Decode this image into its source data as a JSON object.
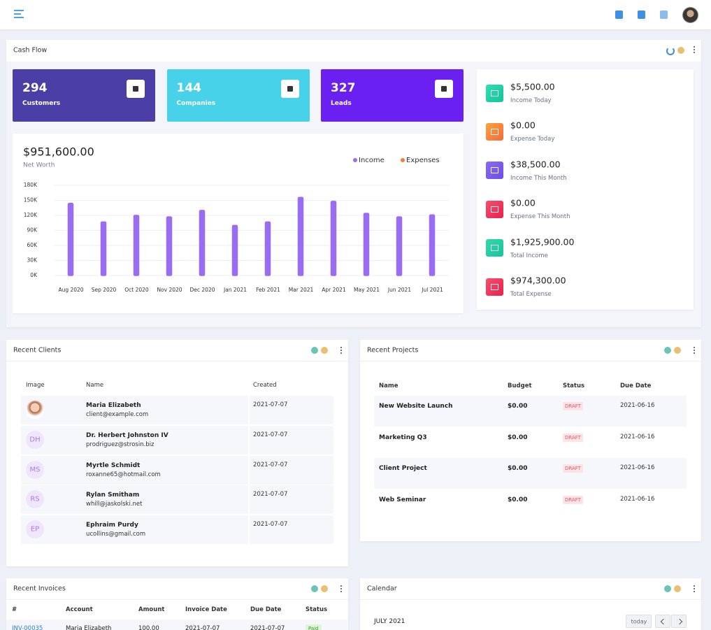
{
  "cash_flow": {
    "title": "Cash Flow",
    "tiles": [
      {
        "value": 294,
        "label": "Customers"
      },
      {
        "value": 144,
        "label": "Companies"
      },
      {
        "value": 327,
        "label": "Leads"
      }
    ],
    "chart": {
      "type": "bar",
      "title": "$951,600.00",
      "subtitle": "Net Worth",
      "categories": [
        "Aug 2020",
        "Sep 2020",
        "Oct 2020",
        "Nov 2020",
        "Dec 2020",
        "Jan 2021",
        "Feb 2021",
        "Mar 2021",
        "Apr 2021",
        "May 2021",
        "Jun 2021",
        "Jul 2021"
      ],
      "series": [
        {
          "name": "Income",
          "color": "#9a6cf2",
          "values": [
            144000,
            107000,
            120000,
            117000,
            130000,
            100000,
            107000,
            156000,
            148000,
            124000,
            117000,
            121000
          ]
        },
        {
          "name": "Expenses",
          "color": "#f57c3b",
          "values": [
            0,
            0,
            0,
            0,
            0,
            0,
            0,
            0,
            0,
            0,
            0,
            0
          ]
        }
      ],
      "ylim": [
        0,
        180000
      ],
      "yticks": [
        {
          "value": 0,
          "label": "0K"
        },
        {
          "value": 30000,
          "label": "30K"
        },
        {
          "value": 60000,
          "label": "60K"
        },
        {
          "value": 90000,
          "label": "90K"
        },
        {
          "value": 120000,
          "label": "120K"
        },
        {
          "value": 150000,
          "label": "150K"
        },
        {
          "value": 180000,
          "label": "180K"
        }
      ],
      "grid": true
    },
    "summary": [
      {
        "amount": "$5,500.00",
        "label": "Income Today"
      },
      {
        "amount": "$0.00",
        "label": "Expense Today"
      },
      {
        "amount": "$38,500.00",
        "label": "Income This Month"
      },
      {
        "amount": "$0.00",
        "label": "Expense This Month"
      },
      {
        "amount": "$1,925,900.00",
        "label": "Total Income"
      },
      {
        "amount": "$974,300.00",
        "label": "Total Expense"
      }
    ]
  },
  "recent_clients": {
    "title": "Recent Clients",
    "columns": [
      "Image",
      "Name",
      "Created"
    ],
    "rows": [
      {
        "name": "Maria Elizabeth",
        "email": "client@example.com",
        "created": "2021-07-07"
      },
      {
        "initials": "DH",
        "name": "Dr. Herbert Johnston IV",
        "email": "prodriguez@strosin.biz",
        "created": "2021-07-07"
      },
      {
        "initials": "MS",
        "name": "Myrtle Schmidt",
        "email": "roxanne65@hotmail.com",
        "created": "2021-07-07"
      },
      {
        "initials": "RS",
        "name": "Rylan Smitham",
        "email": "whill@jaskolski.net",
        "created": "2021-07-07"
      },
      {
        "initials": "EP",
        "name": "Ephraim Purdy",
        "email": "ucollins@gmail.com",
        "created": "2021-07-07"
      }
    ]
  },
  "recent_projects": {
    "title": "Recent Projects",
    "columns": [
      "Name",
      "Budget",
      "Status",
      "Due Date"
    ],
    "rows": [
      [
        "New Website Launch",
        "$0.00",
        "DRAFT",
        "2021-06-16"
      ],
      [
        "Marketing Q3",
        "$0.00",
        "DRAFT",
        "2021-06-16"
      ],
      [
        "Client Project",
        "$0.00",
        "DRAFT",
        "2021-06-16"
      ],
      [
        "Web Seminar",
        "$0.00",
        "DRAFT",
        "2021-06-16"
      ]
    ]
  },
  "recent_invoices": {
    "title": "Recent Invoices",
    "columns": [
      "#",
      "Account",
      "Amount",
      "Invoice Date",
      "Due Date",
      "Status"
    ],
    "rows": [
      [
        "INV-00035",
        "Maria Elizabeth",
        "100.00",
        "2021-07-07",
        "2021-07-07",
        "Paid"
      ]
    ]
  },
  "calendar": {
    "title": "Calendar",
    "month": "JULY 2021",
    "today": "today"
  }
}
